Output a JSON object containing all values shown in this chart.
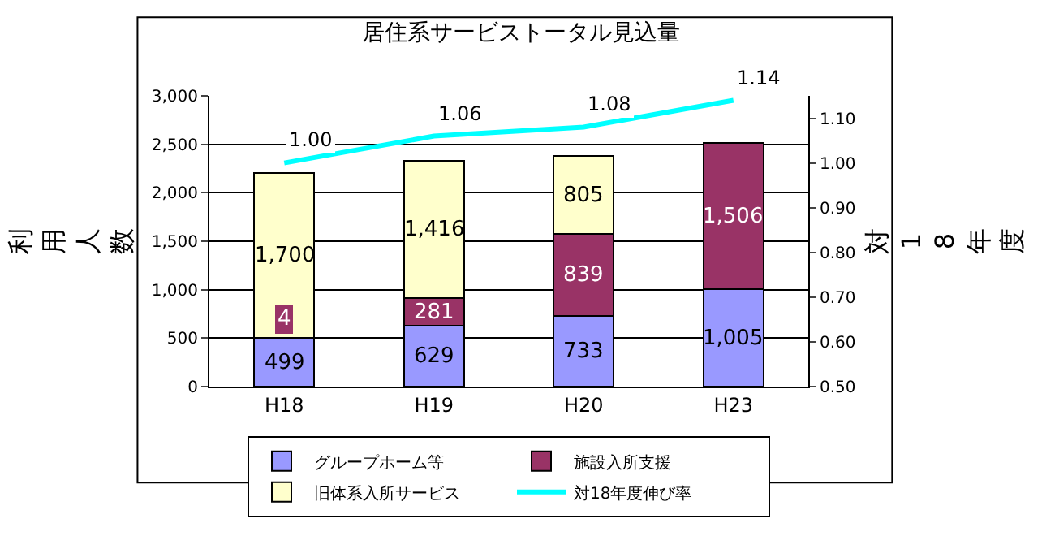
{
  "chart_data": {
    "type": "bar",
    "title": "居住系サービストータル見込量",
    "ylabel": "利用人数",
    "y2label": "対18年度",
    "categories": [
      "H18",
      "H19",
      "H20",
      "H23"
    ],
    "stacked": true,
    "series": [
      {
        "name": "グループホーム等",
        "color": "#9999ff",
        "values": [
          499,
          629,
          733,
          1005
        ],
        "value_labels": [
          "499",
          "629",
          "733",
          "1,005"
        ]
      },
      {
        "name": "施設入所支援",
        "color": "#993366",
        "values": [
          4,
          281,
          839,
          1506
        ],
        "value_labels": [
          "4",
          "281",
          "839",
          "1,506"
        ]
      },
      {
        "name": "旧体系入所サービス",
        "color": "#ffffcc",
        "values": [
          1700,
          1416,
          805,
          null
        ],
        "value_labels": [
          "1,700",
          "1,416",
          "805",
          null
        ]
      },
      {
        "name": "対18年度伸び率",
        "type": "line",
        "axis": "y2",
        "color": "#00ffff",
        "values": [
          1.0,
          1.06,
          1.08,
          1.14
        ],
        "value_labels": [
          "1.00",
          "1.06",
          "1.08",
          "1.14"
        ]
      }
    ],
    "ylim": [
      0,
      3000
    ],
    "yticks": [
      {
        "value": 0,
        "label": "0"
      },
      {
        "value": 500,
        "label": "500"
      },
      {
        "value": 1000,
        "label": "1,000"
      },
      {
        "value": 1500,
        "label": "1,500"
      },
      {
        "value": 2000,
        "label": "2,000"
      },
      {
        "value": 2500,
        "label": "2,500"
      },
      {
        "value": 3000,
        "label": "3,000"
      }
    ],
    "y2lim": [
      0.5,
      1.15
    ],
    "y2ticks": [
      {
        "value": 0.5,
        "label": "0.50"
      },
      {
        "value": 0.6,
        "label": "0.60"
      },
      {
        "value": 0.7,
        "label": "0.70"
      },
      {
        "value": 0.8,
        "label": "0.80"
      },
      {
        "value": 0.9,
        "label": "0.90"
      },
      {
        "value": 1.0,
        "label": "1.00"
      },
      {
        "value": 1.1,
        "label": "1.10"
      }
    ],
    "grid": "y",
    "legend": "bottom"
  }
}
